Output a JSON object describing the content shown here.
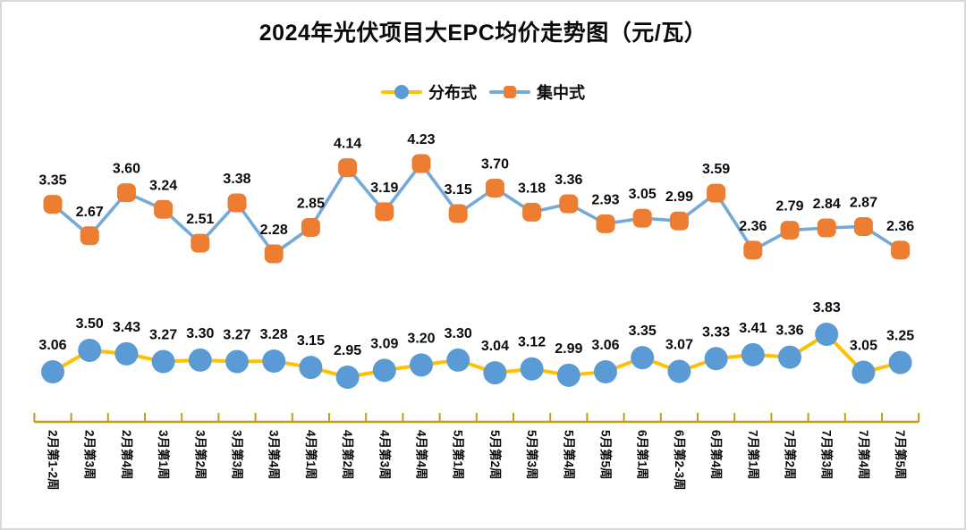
{
  "title": "2024年光伏项目大EPC均价走势图（元/瓦）",
  "chart_data": {
    "type": "line",
    "title": "2024年光伏项目大EPC均价走势图（元/瓦）",
    "unit": "元/瓦",
    "legend_position": "top",
    "grid": false,
    "data_labels": true,
    "x_labels_rotated_90deg": true,
    "categories": [
      "2月第1-2周",
      "2月第3周",
      "2月第4周",
      "3月第1周",
      "3月第2周",
      "3月第3周",
      "3月第4周",
      "4月第1周",
      "4月第2周",
      "4月第3周",
      "4月第4周",
      "5月第1周",
      "5月第2周",
      "5月第3周",
      "5月第4周",
      "5月第5周",
      "6月第1周",
      "6月第2-3周",
      "6月第4周",
      "7月第1周",
      "7月第2周",
      "7月第3周",
      "7月第4周",
      "7月第5周"
    ],
    "series": [
      {
        "id": "distributed",
        "name": "分布式",
        "marker": "circle",
        "marker_color": "#5B9BD5",
        "line_color": "#FFC000",
        "observed_range": [
          2.95,
          3.83
        ],
        "values": [
          3.06,
          3.5,
          3.43,
          3.27,
          3.3,
          3.27,
          3.28,
          3.15,
          2.95,
          3.09,
          3.2,
          3.3,
          3.04,
          3.12,
          2.99,
          3.06,
          3.35,
          3.07,
          3.33,
          3.41,
          3.36,
          3.83,
          3.05,
          3.25
        ]
      },
      {
        "id": "centralized",
        "name": "集中式",
        "marker": "rounded-square",
        "marker_color": "#ED7D31",
        "line_color": "#74A9D8",
        "observed_range": [
          2.28,
          4.23
        ],
        "values": [
          3.35,
          2.67,
          3.6,
          3.24,
          2.51,
          3.38,
          2.28,
          2.85,
          4.14,
          3.19,
          4.23,
          3.15,
          3.7,
          3.18,
          3.36,
          2.93,
          3.05,
          2.99,
          3.59,
          2.36,
          2.79,
          2.84,
          2.87,
          2.36
        ]
      }
    ],
    "axis": {
      "line_color": "#C49A1A",
      "label_color": "#0a0a0a"
    },
    "colors": {
      "title": "#0a0a0a",
      "data_label": "#0a0a0a",
      "background": "#ffffff",
      "border": "#d9d9d9"
    }
  }
}
